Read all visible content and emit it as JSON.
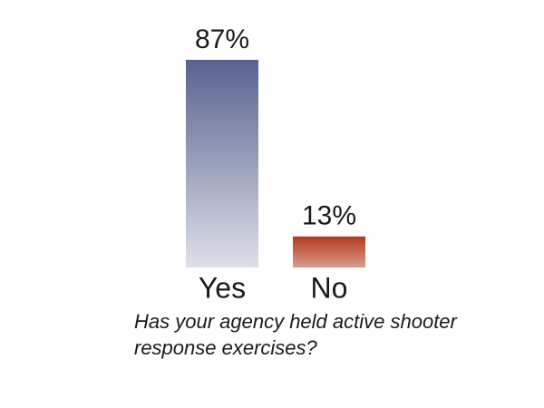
{
  "chart_data": {
    "type": "bar",
    "title": "Has your agency held active shooter response exercises?",
    "categories": [
      "Yes",
      "No"
    ],
    "values": [
      87,
      13
    ],
    "value_labels": [
      "87%",
      "13%"
    ],
    "colors": [
      "#58628f",
      "#b23a1c"
    ]
  }
}
